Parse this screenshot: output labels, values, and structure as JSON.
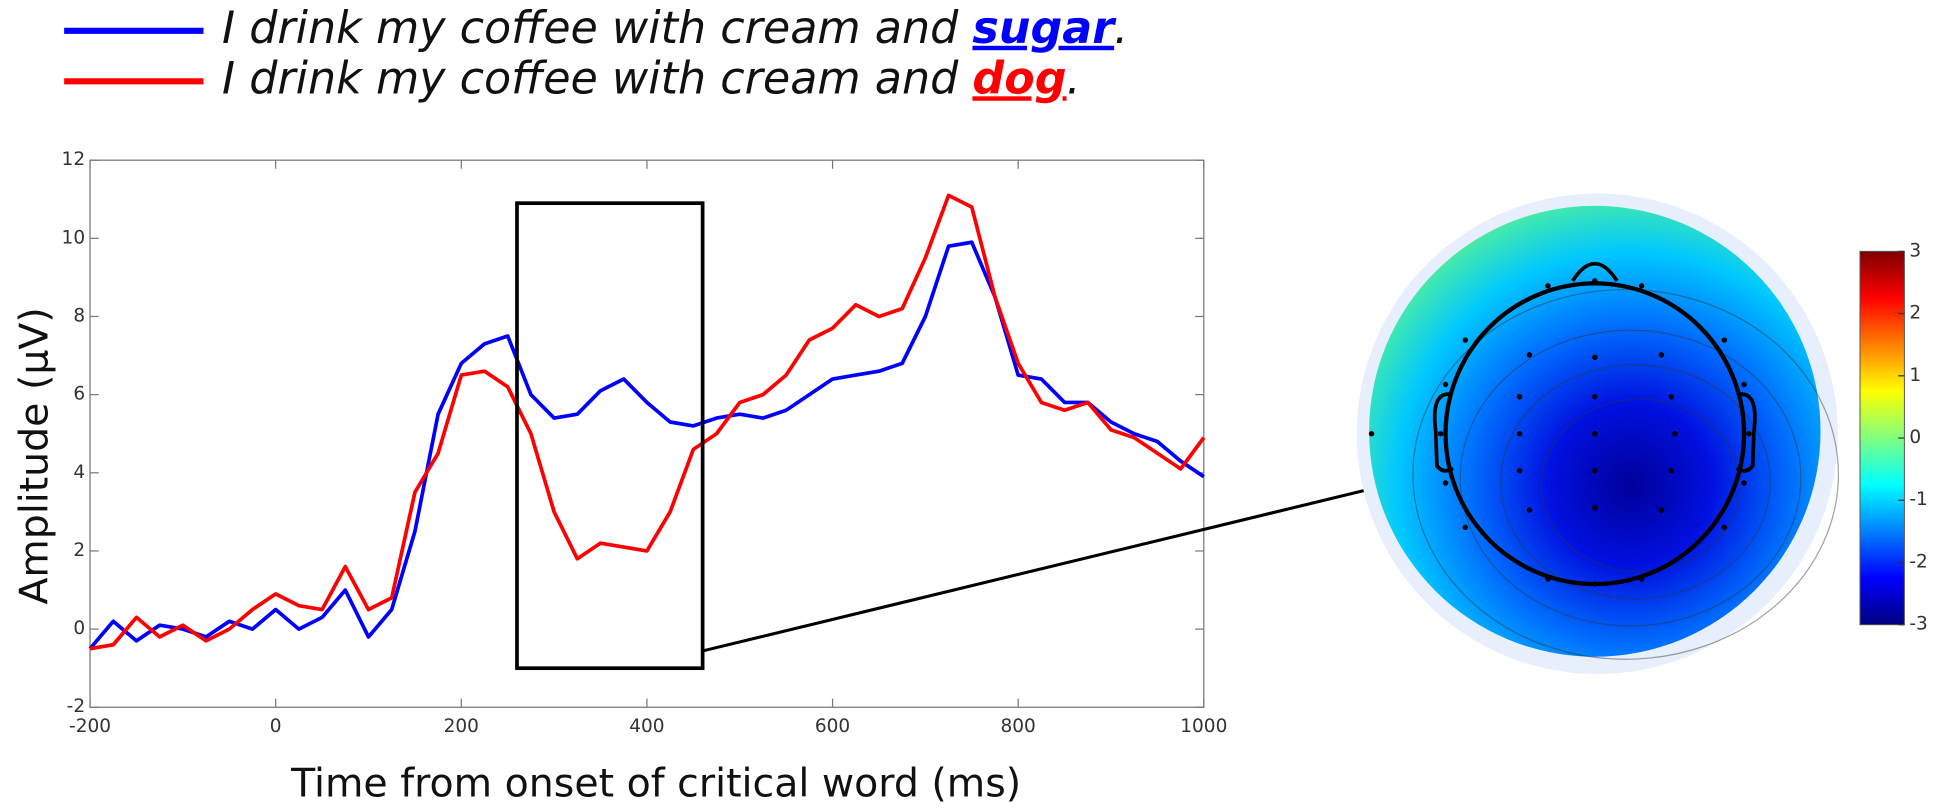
{
  "chart_data": [
    {
      "type": "line",
      "x_label": "Time from onset of critical word (ms)",
      "y_label": "Amplitude (μV)",
      "x": [
        -200,
        -175,
        -150,
        -125,
        -100,
        -75,
        -50,
        -25,
        0,
        25,
        50,
        75,
        100,
        125,
        150,
        175,
        200,
        225,
        250,
        275,
        300,
        325,
        350,
        375,
        400,
        425,
        450,
        475,
        500,
        525,
        550,
        575,
        600,
        625,
        650,
        675,
        700,
        725,
        750,
        775,
        800,
        825,
        850,
        875,
        900,
        925,
        950,
        975,
        1000
      ],
      "series": [
        {
          "name": "I drink my coffee with cream and sugar.",
          "color": "#0000ff",
          "values": [
            -0.5,
            0.2,
            -0.3,
            0.1,
            0,
            -0.2,
            0.2,
            0,
            0.5,
            0,
            0.3,
            1.0,
            -0.2,
            0.5,
            2.5,
            5.5,
            6.8,
            7.3,
            7.5,
            6.0,
            5.4,
            5.5,
            6.1,
            6.4,
            5.8,
            5.3,
            5.2,
            5.4,
            5.5,
            5.4,
            5.6,
            6.0,
            6.4,
            6.5,
            6.6,
            6.8,
            8.0,
            9.8,
            9.9,
            8.5,
            6.5,
            6.4,
            5.8,
            5.8,
            5.3,
            5.0,
            4.8,
            4.3,
            3.9
          ]
        },
        {
          "name": "I drink my coffee with cream and dog.",
          "color": "#ff0000",
          "values": [
            -0.5,
            -0.4,
            0.3,
            -0.2,
            0.1,
            -0.3,
            0,
            0.5,
            0.9,
            0.6,
            0.5,
            1.6,
            0.5,
            0.8,
            3.5,
            4.5,
            6.5,
            6.6,
            6.2,
            5.0,
            3.0,
            1.8,
            2.2,
            2.1,
            2.0,
            3.0,
            4.6,
            5.0,
            5.8,
            6.0,
            6.5,
            7.4,
            7.7,
            8.3,
            8.0,
            8.2,
            9.5,
            11.1,
            10.8,
            8.5,
            6.8,
            5.8,
            5.6,
            5.8,
            5.1,
            4.9,
            4.5,
            4.1,
            4.9
          ]
        }
      ],
      "xlim": [
        -200,
        1000
      ],
      "xticks": [
        -200,
        0,
        200,
        400,
        600,
        800,
        1000
      ],
      "ylim": [
        -2,
        12
      ],
      "yticks": [
        -2,
        0,
        2,
        4,
        6,
        8,
        10,
        12
      ],
      "highlight_window": {
        "x": [
          260,
          460
        ],
        "y": [
          -1,
          10.9
        ]
      }
    },
    {
      "type": "topomap",
      "clim": [
        -3,
        3
      ],
      "cticks": [
        -3,
        -2,
        -1,
        0,
        1,
        2,
        3
      ]
    }
  ]
}
